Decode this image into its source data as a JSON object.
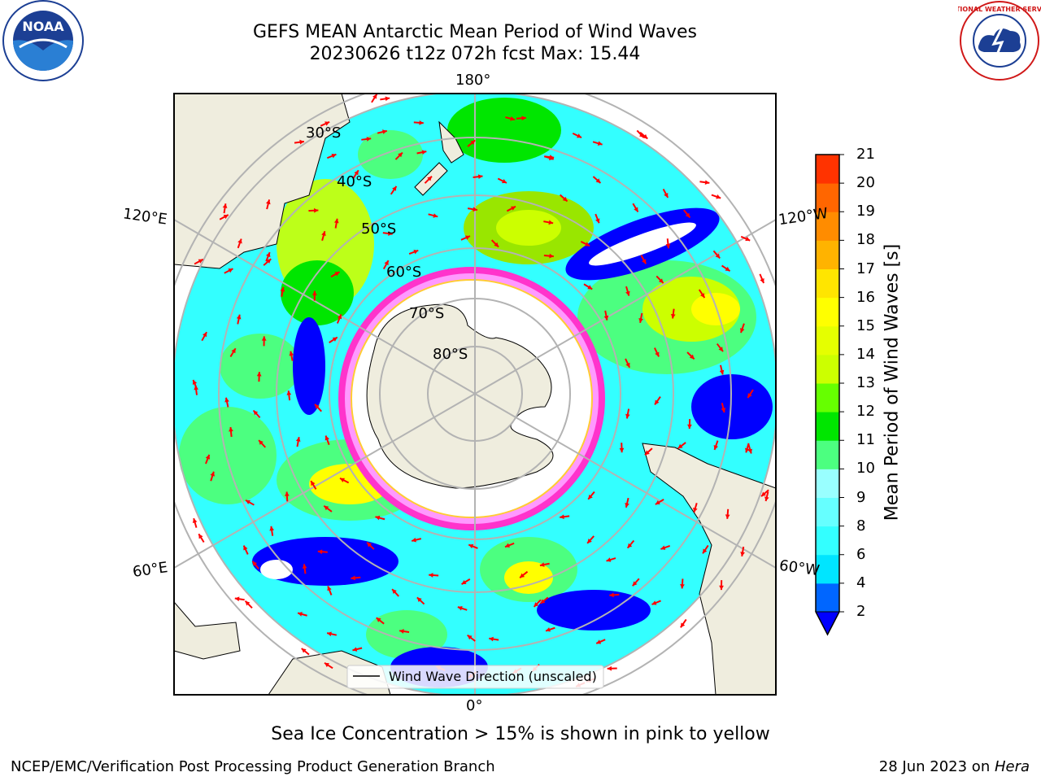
{
  "title": {
    "line1": "GEFS MEAN Antarctic Mean Period of Wind Waves",
    "line2": "20230626 t12z 072h fcst   Max: 15.44"
  },
  "map": {
    "projection": "south-polar-stereographic",
    "longitude_labels": [
      "180°",
      "120°E",
      "120°W",
      "60°E",
      "60°W",
      "0°"
    ],
    "latitude_labels": [
      "30°S",
      "40°S",
      "50°S",
      "60°S",
      "70°S",
      "80°S"
    ],
    "legend_label": "Wind Wave Direction (unscaled)",
    "arrow_color": "#ff0000",
    "sea_ice_colors": [
      "#ff33cc",
      "#ff99ff",
      "#ffcc33"
    ],
    "land_color": "#efedde"
  },
  "colorbar": {
    "title": "Mean Period of Wind Waves [s]",
    "ticks": [
      "2",
      "4",
      "6",
      "8",
      "9",
      "10",
      "11",
      "12",
      "13",
      "14",
      "15",
      "16",
      "17",
      "18",
      "19",
      "20",
      "21"
    ],
    "colors": [
      "#0066ff",
      "#00e5ff",
      "#33ffff",
      "#66ffff",
      "#99ffff",
      "#4cff80",
      "#00e600",
      "#66ff00",
      "#ccff00",
      "#e5ff00",
      "#ffff00",
      "#ffe500",
      "#ffb300",
      "#ff8c00",
      "#ff6600",
      "#ff3300"
    ],
    "extend_color": "#0000ff"
  },
  "caption": "Sea Ice Concentration > 15% is shown in pink to yellow",
  "footer": {
    "left": "NCEP/EMC/Verification Post Processing Product Generation Branch",
    "right_date": "28 Jun 2023 on ",
    "right_host": "Hera"
  },
  "logos": {
    "noaa_text": "NOAA",
    "nws_text": "NATIONAL WEATHER SERVICE"
  }
}
